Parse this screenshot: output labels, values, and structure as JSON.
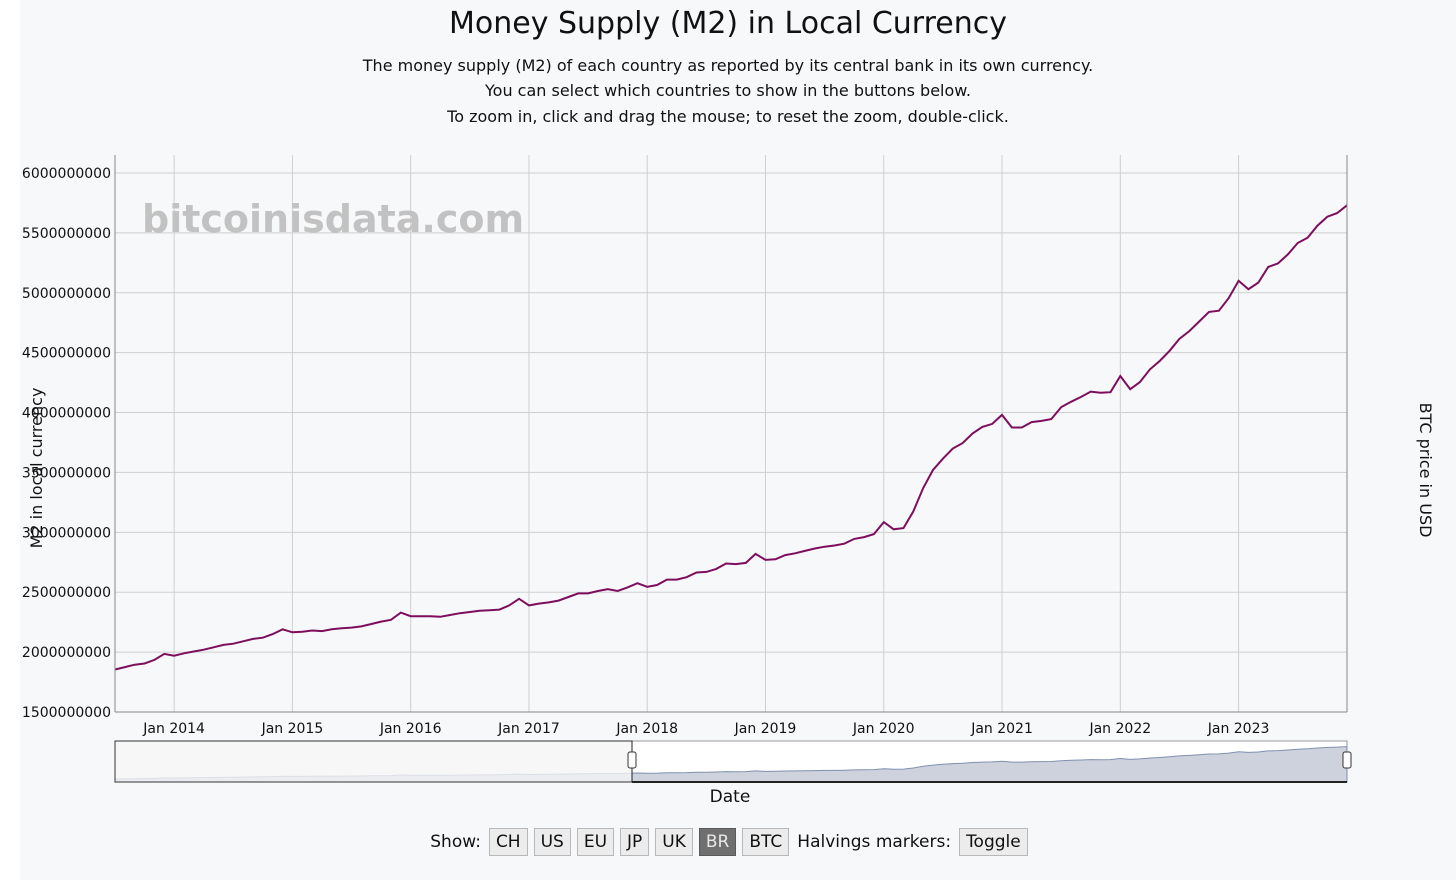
{
  "header": {
    "title": "Money Supply (M2) in Local Currency",
    "subtitle_lines": [
      "The money supply (M2) of each country as reported by its central bank in its own currency.",
      "You can select which countries to show in the buttons below.",
      "To zoom in, click and drag the mouse; to reset the zoom, double-click."
    ]
  },
  "watermark": "bitcoinisdata.com",
  "colors": {
    "series": "#7d0e5e",
    "grid": "#cfcfcf",
    "navigator_fill": "#cdd2dd",
    "navigator_line": "#8090b0"
  },
  "controls": {
    "show_label": "Show:",
    "buttons": [
      {
        "label": "CH",
        "active": false
      },
      {
        "label": "US",
        "active": false
      },
      {
        "label": "EU",
        "active": false
      },
      {
        "label": "JP",
        "active": false
      },
      {
        "label": "UK",
        "active": false
      },
      {
        "label": "BR",
        "active": true
      },
      {
        "label": "BTC",
        "active": false
      }
    ],
    "halvings_label": "Halvings markers:",
    "toggle_label": "Toggle"
  },
  "chart_data": {
    "type": "line",
    "title": "Money Supply (M2) in Local Currency",
    "xlabel": "Date",
    "ylabel": "M2 in local currency",
    "y2label": "BTC price in USD",
    "xlim": [
      "2013-07-01",
      "2023-12-01"
    ],
    "ylim": [
      1500000000,
      6150000000
    ],
    "y_ticks": [
      "1500000000",
      "2000000000",
      "2500000000",
      "3000000000",
      "3500000000",
      "4000000000",
      "4500000000",
      "5000000000",
      "5500000000",
      "6000000000"
    ],
    "x_ticks": [
      "Jan 2014",
      "Jan 2015",
      "Jan 2016",
      "Jan 2017",
      "Jan 2018",
      "Jan 2019",
      "Jan 2020",
      "Jan 2021",
      "Jan 2022",
      "Jan 2023"
    ],
    "x_tick_dates": [
      "2014-01",
      "2015-01",
      "2016-01",
      "2017-01",
      "2018-01",
      "2019-01",
      "2020-01",
      "2021-01",
      "2022-01",
      "2023-01"
    ],
    "grid": true,
    "series": [
      {
        "name": "BR",
        "start": "2013-07",
        "monthly_values": [
          1855000000,
          1875000000,
          1895000000,
          1905000000,
          1935000000,
          1985000000,
          1970000000,
          1990000000,
          2005000000,
          2020000000,
          2040000000,
          2060000000,
          2070000000,
          2090000000,
          2110000000,
          2120000000,
          2150000000,
          2190000000,
          2165000000,
          2170000000,
          2180000000,
          2175000000,
          2190000000,
          2200000000,
          2205000000,
          2215000000,
          2235000000,
          2255000000,
          2270000000,
          2330000000,
          2300000000,
          2300000000,
          2300000000,
          2295000000,
          2310000000,
          2325000000,
          2335000000,
          2345000000,
          2350000000,
          2355000000,
          2390000000,
          2445000000,
          2390000000,
          2405000000,
          2415000000,
          2430000000,
          2460000000,
          2490000000,
          2490000000,
          2510000000,
          2525000000,
          2510000000,
          2540000000,
          2575000000,
          2545000000,
          2560000000,
          2605000000,
          2605000000,
          2625000000,
          2665000000,
          2670000000,
          2695000000,
          2740000000,
          2735000000,
          2745000000,
          2820000000,
          2770000000,
          2775000000,
          2810000000,
          2825000000,
          2845000000,
          2865000000,
          2880000000,
          2890000000,
          2905000000,
          2945000000,
          2960000000,
          2985000000,
          3085000000,
          3025000000,
          3035000000,
          3175000000,
          3370000000,
          3520000000,
          3615000000,
          3700000000,
          3745000000,
          3825000000,
          3880000000,
          3905000000,
          3980000000,
          3875000000,
          3875000000,
          3920000000,
          3930000000,
          3945000000,
          4045000000,
          4090000000,
          4130000000,
          4175000000,
          4165000000,
          4170000000,
          4305000000,
          4195000000,
          4255000000,
          4360000000,
          4430000000,
          4515000000,
          4615000000,
          4680000000,
          4760000000,
          4840000000,
          4850000000,
          4955000000,
          5100000000,
          5030000000,
          5085000000,
          5215000000,
          5245000000,
          5320000000,
          5415000000,
          5460000000,
          5560000000,
          5635000000,
          5665000000,
          5730000000
        ]
      }
    ]
  }
}
